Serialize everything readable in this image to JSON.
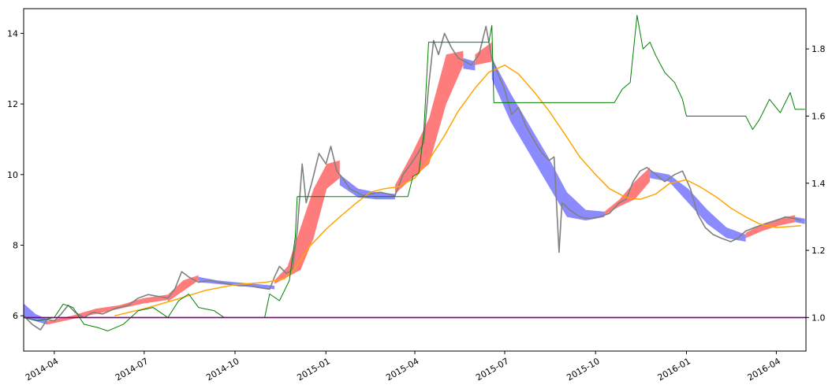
{
  "chart_data": {
    "type": "line",
    "xlim": [
      "2014-03-01",
      "2016-05-01"
    ],
    "ylim": [
      5.0,
      14.7
    ],
    "y2lim": [
      0.9,
      1.92
    ],
    "x_ticks": [
      {
        "date": "2014-04-01",
        "label": "2014-04"
      },
      {
        "date": "2014-07-01",
        "label": "2014-07"
      },
      {
        "date": "2014-10-01",
        "label": "2014-10"
      },
      {
        "date": "2015-01-01",
        "label": "2015-01"
      },
      {
        "date": "2015-04-01",
        "label": "2015-04"
      },
      {
        "date": "2015-07-01",
        "label": "2015-07"
      },
      {
        "date": "2015-10-01",
        "label": "2015-10"
      },
      {
        "date": "2016-01-01",
        "label": "2016-01"
      },
      {
        "date": "2016-04-01",
        "label": "2016-04"
      }
    ],
    "y_ticks": [
      {
        "value": 6,
        "label": "6"
      },
      {
        "value": 8,
        "label": "8"
      },
      {
        "value": 10,
        "label": "10"
      },
      {
        "value": 12,
        "label": "12"
      },
      {
        "value": 14,
        "label": "14"
      }
    ],
    "y2_ticks": [
      {
        "value": 1.0,
        "label": "1.0"
      },
      {
        "value": 1.2,
        "label": "1.2"
      },
      {
        "value": 1.4,
        "label": "1.4"
      },
      {
        "value": 1.6,
        "label": "1.6"
      },
      {
        "value": 1.8,
        "label": "1.8"
      }
    ],
    "grid": false,
    "series": [
      {
        "role": "price",
        "axis": "left",
        "color": "#808080",
        "points": [
          [
            "2014-03-01",
            6.0
          ],
          [
            "2014-03-10",
            5.75
          ],
          [
            "2014-03-18",
            5.6
          ],
          [
            "2014-03-25",
            5.9
          ],
          [
            "2014-04-01",
            5.85
          ],
          [
            "2014-04-08",
            6.05
          ],
          [
            "2014-04-15",
            6.3
          ],
          [
            "2014-04-22",
            6.1
          ],
          [
            "2014-05-01",
            5.95
          ],
          [
            "2014-05-10",
            6.1
          ],
          [
            "2014-05-20",
            6.05
          ],
          [
            "2014-06-01",
            6.2
          ],
          [
            "2014-06-15",
            6.3
          ],
          [
            "2014-06-25",
            6.5
          ],
          [
            "2014-07-05",
            6.6
          ],
          [
            "2014-07-15",
            6.55
          ],
          [
            "2014-07-25",
            6.5
          ],
          [
            "2014-08-01",
            6.75
          ],
          [
            "2014-08-08",
            7.25
          ],
          [
            "2014-08-15",
            7.1
          ],
          [
            "2014-08-25",
            6.95
          ],
          [
            "2014-09-05",
            7.0
          ],
          [
            "2014-09-15",
            6.95
          ],
          [
            "2014-09-25",
            6.9
          ],
          [
            "2014-10-05",
            6.85
          ],
          [
            "2014-10-15",
            6.85
          ],
          [
            "2014-10-25",
            6.8
          ],
          [
            "2014-11-05",
            6.75
          ],
          [
            "2014-11-10",
            7.1
          ],
          [
            "2014-11-15",
            7.4
          ],
          [
            "2014-11-22",
            7.2
          ],
          [
            "2014-11-28",
            7.3
          ],
          [
            "2014-12-03",
            8.4
          ],
          [
            "2014-12-08",
            10.3
          ],
          [
            "2014-12-12",
            9.2
          ],
          [
            "2014-12-18",
            9.8
          ],
          [
            "2014-12-25",
            10.6
          ],
          [
            "2015-01-01",
            10.3
          ],
          [
            "2015-01-06",
            10.8
          ],
          [
            "2015-01-12",
            10.1
          ],
          [
            "2015-01-18",
            9.9
          ],
          [
            "2015-01-25",
            9.6
          ],
          [
            "2015-02-01",
            9.5
          ],
          [
            "2015-02-08",
            9.4
          ],
          [
            "2015-02-15",
            9.45
          ],
          [
            "2015-02-25",
            9.5
          ],
          [
            "2015-03-05",
            9.45
          ],
          [
            "2015-03-12",
            9.4
          ],
          [
            "2015-03-20",
            10.0
          ],
          [
            "2015-03-28",
            10.3
          ],
          [
            "2015-04-04",
            10.6
          ],
          [
            "2015-04-10",
            10.9
          ],
          [
            "2015-04-15",
            12.5
          ],
          [
            "2015-04-20",
            13.8
          ],
          [
            "2015-04-25",
            13.4
          ],
          [
            "2015-05-01",
            14.0
          ],
          [
            "2015-05-08",
            13.6
          ],
          [
            "2015-05-15",
            13.3
          ],
          [
            "2015-05-22",
            13.2
          ],
          [
            "2015-05-28",
            13.1
          ],
          [
            "2015-06-05",
            13.4
          ],
          [
            "2015-06-12",
            14.2
          ],
          [
            "2015-06-18",
            13.3
          ],
          [
            "2015-06-25",
            12.8
          ],
          [
            "2015-07-01",
            12.4
          ],
          [
            "2015-07-08",
            11.7
          ],
          [
            "2015-07-15",
            11.9
          ],
          [
            "2015-07-22",
            11.4
          ],
          [
            "2015-08-01",
            10.9
          ],
          [
            "2015-08-08",
            10.6
          ],
          [
            "2015-08-15",
            10.4
          ],
          [
            "2015-08-20",
            10.5
          ],
          [
            "2015-08-25",
            7.8
          ],
          [
            "2015-08-28",
            9.2
          ],
          [
            "2015-09-05",
            9.0
          ],
          [
            "2015-09-15",
            8.8
          ],
          [
            "2015-09-25",
            8.75
          ],
          [
            "2015-10-05",
            8.8
          ],
          [
            "2015-10-15",
            8.9
          ],
          [
            "2015-10-25",
            9.2
          ],
          [
            "2015-11-01",
            9.3
          ],
          [
            "2015-11-08",
            9.8
          ],
          [
            "2015-11-15",
            10.1
          ],
          [
            "2015-11-22",
            10.2
          ],
          [
            "2015-12-01",
            10.0
          ],
          [
            "2015-12-10",
            9.8
          ],
          [
            "2015-12-20",
            10.0
          ],
          [
            "2015-12-28",
            10.1
          ],
          [
            "2016-01-05",
            9.6
          ],
          [
            "2016-01-12",
            8.9
          ],
          [
            "2016-01-20",
            8.5
          ],
          [
            "2016-01-28",
            8.3
          ],
          [
            "2016-02-05",
            8.2
          ],
          [
            "2016-02-15",
            8.1
          ],
          [
            "2016-02-22",
            8.2
          ],
          [
            "2016-03-01",
            8.4
          ],
          [
            "2016-03-10",
            8.5
          ],
          [
            "2016-03-20",
            8.6
          ],
          [
            "2016-04-01",
            8.7
          ],
          [
            "2016-04-10",
            8.8
          ],
          [
            "2016-04-20",
            8.75
          ],
          [
            "2016-04-26",
            8.7
          ]
        ]
      },
      {
        "role": "moving-average",
        "axis": "left",
        "color": "#ffa500",
        "points": [
          [
            "2014-06-01",
            6.0
          ],
          [
            "2014-07-01",
            6.2
          ],
          [
            "2014-08-01",
            6.45
          ],
          [
            "2014-09-01",
            6.72
          ],
          [
            "2014-10-01",
            6.88
          ],
          [
            "2014-11-01",
            6.95
          ],
          [
            "2014-11-20",
            7.05
          ],
          [
            "2014-12-01",
            7.35
          ],
          [
            "2014-12-15",
            7.95
          ],
          [
            "2015-01-01",
            8.45
          ],
          [
            "2015-01-15",
            8.8
          ],
          [
            "2015-02-01",
            9.2
          ],
          [
            "2015-02-15",
            9.5
          ],
          [
            "2015-03-01",
            9.6
          ],
          [
            "2015-03-15",
            9.65
          ],
          [
            "2015-04-01",
            9.9
          ],
          [
            "2015-04-15",
            10.4
          ],
          [
            "2015-05-01",
            11.1
          ],
          [
            "2015-05-15",
            11.8
          ],
          [
            "2015-06-01",
            12.45
          ],
          [
            "2015-06-15",
            12.9
          ],
          [
            "2015-07-01",
            13.1
          ],
          [
            "2015-07-15",
            12.85
          ],
          [
            "2015-08-01",
            12.3
          ],
          [
            "2015-08-15",
            11.8
          ],
          [
            "2015-09-01",
            11.1
          ],
          [
            "2015-09-15",
            10.5
          ],
          [
            "2015-10-01",
            10.0
          ],
          [
            "2015-10-15",
            9.6
          ],
          [
            "2015-11-01",
            9.35
          ],
          [
            "2015-11-15",
            9.3
          ],
          [
            "2015-12-01",
            9.45
          ],
          [
            "2015-12-15",
            9.75
          ],
          [
            "2016-01-01",
            9.85
          ],
          [
            "2016-01-15",
            9.65
          ],
          [
            "2016-02-01",
            9.35
          ],
          [
            "2016-02-15",
            9.05
          ],
          [
            "2016-03-01",
            8.8
          ],
          [
            "2016-03-15",
            8.6
          ],
          [
            "2016-04-01",
            8.5
          ],
          [
            "2016-04-26",
            8.55
          ]
        ]
      },
      {
        "role": "ratio",
        "axis": "right",
        "color": "#008000",
        "points": [
          [
            "2014-03-01",
            1.0
          ],
          [
            "2014-03-15",
            0.99
          ],
          [
            "2014-04-01",
            1.0
          ],
          [
            "2014-04-10",
            1.04
          ],
          [
            "2014-04-20",
            1.03
          ],
          [
            "2014-05-01",
            0.98
          ],
          [
            "2014-05-15",
            0.97
          ],
          [
            "2014-05-25",
            0.96
          ],
          [
            "2014-06-10",
            0.98
          ],
          [
            "2014-06-25",
            1.02
          ],
          [
            "2014-07-10",
            1.03
          ],
          [
            "2014-07-25",
            1.0
          ],
          [
            "2014-08-05",
            1.05
          ],
          [
            "2014-08-15",
            1.07
          ],
          [
            "2014-08-25",
            1.03
          ],
          [
            "2014-09-10",
            1.02
          ],
          [
            "2014-09-20",
            1.0
          ],
          [
            "2014-10-01",
            1.0
          ],
          [
            "2014-10-31",
            1.0
          ],
          [
            "2014-11-05",
            1.07
          ],
          [
            "2014-11-15",
            1.05
          ],
          [
            "2014-11-25",
            1.11
          ],
          [
            "2014-12-01",
            1.24
          ],
          [
            "2014-12-03",
            1.36
          ],
          [
            "2015-03-25",
            1.36
          ],
          [
            "2015-03-30",
            1.42
          ],
          [
            "2015-04-05",
            1.43
          ],
          [
            "2015-04-10",
            1.55
          ],
          [
            "2015-04-15",
            1.82
          ],
          [
            "2015-06-15",
            1.82
          ],
          [
            "2015-06-18",
            1.87
          ],
          [
            "2015-06-20",
            1.64
          ],
          [
            "2015-10-20",
            1.64
          ],
          [
            "2015-10-28",
            1.68
          ],
          [
            "2015-11-05",
            1.7
          ],
          [
            "2015-11-12",
            1.9
          ],
          [
            "2015-11-18",
            1.8
          ],
          [
            "2015-11-25",
            1.82
          ],
          [
            "2015-12-01",
            1.78
          ],
          [
            "2015-12-10",
            1.73
          ],
          [
            "2015-12-20",
            1.7
          ],
          [
            "2015-12-28",
            1.65
          ],
          [
            "2016-01-01",
            1.6
          ],
          [
            "2016-03-01",
            1.6
          ],
          [
            "2016-03-08",
            1.56
          ],
          [
            "2016-03-15",
            1.59
          ],
          [
            "2016-03-25",
            1.65
          ],
          [
            "2016-04-05",
            1.61
          ],
          [
            "2016-04-15",
            1.67
          ],
          [
            "2016-04-20",
            1.62
          ],
          [
            "2016-04-30",
            1.62
          ]
        ]
      },
      {
        "role": "baseline",
        "axis": "right",
        "color": "#800080",
        "points": [
          [
            "2014-03-01",
            1.0
          ],
          [
            "2016-05-01",
            1.0
          ]
        ]
      }
    ],
    "bands": [
      {
        "color": "#6464ff",
        "from": "2014-03-01",
        "to": "2014-03-25",
        "upper": [
          6.35,
          6.05,
          5.9
        ],
        "lower": [
          5.95,
          5.85,
          5.75
        ]
      },
      {
        "color": "#ff5050",
        "from": "2014-03-25",
        "to": "2014-07-25",
        "upper": [
          5.85,
          6.0,
          6.2,
          6.3,
          6.5,
          6.6
        ],
        "lower": [
          5.75,
          5.9,
          6.05,
          6.2,
          6.35,
          6.45
        ]
      },
      {
        "color": "#ff5050",
        "from": "2014-07-25",
        "to": "2014-08-25",
        "upper": [
          6.6,
          7.0,
          7.15
        ],
        "lower": [
          6.4,
          6.7,
          7.0
        ]
      },
      {
        "color": "#6464ff",
        "from": "2014-08-25",
        "to": "2014-11-10",
        "upper": [
          7.1,
          7.0,
          6.95,
          6.9,
          6.85
        ],
        "lower": [
          6.95,
          6.9,
          6.85,
          6.8,
          6.75
        ]
      },
      {
        "color": "#ff5050",
        "from": "2014-11-10",
        "to": "2015-01-15",
        "upper": [
          7.0,
          7.4,
          8.5,
          9.6,
          10.3,
          10.4
        ],
        "lower": [
          6.9,
          7.1,
          7.3,
          8.2,
          9.6,
          9.9
        ]
      },
      {
        "color": "#6464ff",
        "from": "2015-01-15",
        "to": "2015-03-12",
        "upper": [
          10.0,
          9.6,
          9.5,
          9.45
        ],
        "lower": [
          9.7,
          9.35,
          9.3,
          9.3
        ]
      },
      {
        "color": "#ff5050",
        "from": "2015-03-12",
        "to": "2015-05-20",
        "upper": [
          9.7,
          10.6,
          11.6,
          13.4,
          13.5
        ],
        "lower": [
          9.45,
          9.9,
          10.3,
          12.0,
          13.1
        ]
      },
      {
        "color": "#6464ff",
        "from": "2015-05-20",
        "to": "2015-06-01",
        "upper": [
          13.3,
          13.2
        ],
        "lower": [
          13.0,
          12.95
        ]
      },
      {
        "color": "#ff5050",
        "from": "2015-06-01",
        "to": "2015-06-18",
        "upper": [
          13.4,
          13.75
        ],
        "lower": [
          13.1,
          13.2
        ]
      },
      {
        "color": "#6464ff",
        "from": "2015-06-18",
        "to": "2015-10-10",
        "upper": [
          13.3,
          12.3,
          11.4,
          10.5,
          9.5,
          9.0,
          8.95
        ],
        "lower": [
          12.7,
          11.5,
          10.6,
          9.7,
          8.8,
          8.7,
          8.8
        ]
      },
      {
        "color": "#ff5050",
        "from": "2015-10-10",
        "to": "2015-11-25",
        "upper": [
          8.95,
          9.3,
          9.8,
          10.2
        ],
        "lower": [
          8.85,
          9.1,
          9.3,
          9.8
        ]
      },
      {
        "color": "#6464ff",
        "from": "2015-11-25",
        "to": "2016-03-01",
        "upper": [
          10.1,
          10.0,
          9.6,
          9.0,
          8.5,
          8.3
        ],
        "lower": [
          9.9,
          9.8,
          9.2,
          8.6,
          8.2,
          8.1
        ]
      },
      {
        "color": "#ff5050",
        "from": "2016-03-01",
        "to": "2016-04-20",
        "upper": [
          8.35,
          8.6,
          8.75,
          8.85
        ],
        "lower": [
          8.2,
          8.4,
          8.55,
          8.65
        ]
      },
      {
        "color": "#6464ff",
        "from": "2016-04-20",
        "to": "2016-04-30",
        "upper": [
          8.8,
          8.75
        ],
        "lower": [
          8.65,
          8.6
        ]
      }
    ]
  }
}
